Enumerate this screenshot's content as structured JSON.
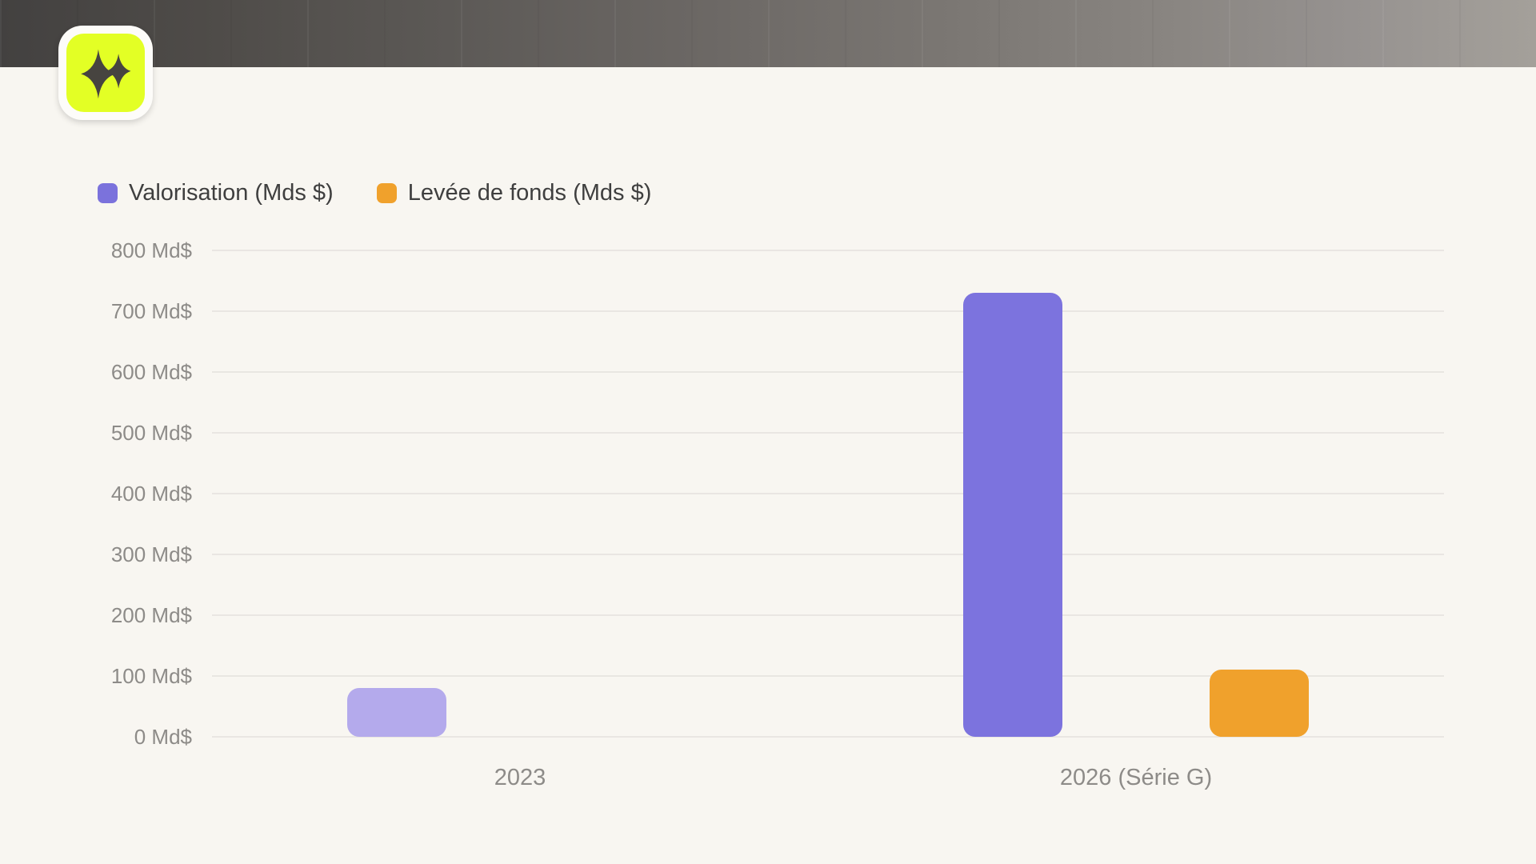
{
  "page": {
    "background_color": "#F8F6F1"
  },
  "header": {
    "kind": "gradient-photo-banner",
    "gradient_left_color": "#434140",
    "gradient_right_color": "#A4A09A"
  },
  "logo": {
    "outer_bg_color": "#FDFCF9",
    "tile_bg_color": "#E3FF25",
    "icon": "double-sparkle-icon",
    "icon_color": "#474440"
  },
  "chart_data": {
    "type": "bar",
    "title": "",
    "xlabel": "",
    "ylabel": "",
    "categories": [
      "2023",
      "2026 (Série G)"
    ],
    "series": [
      {
        "name": "Valorisation (Mds $)",
        "legend_color": "#7B72DC",
        "values": [
          80,
          730
        ],
        "bar_colors": [
          "#B4AAEC",
          "#7C73DE"
        ]
      },
      {
        "name": "Levée de fonds (Mds $)",
        "legend_color": "#F0A12C",
        "values": [
          null,
          110
        ],
        "bar_colors": [
          "#F0A12C",
          "#F0A12C"
        ]
      }
    ],
    "ylim": [
      0,
      800
    ],
    "yticks": [
      0,
      100,
      200,
      300,
      400,
      500,
      600,
      700,
      800
    ],
    "ytick_suffix": " Md$",
    "grid": true,
    "gridline_color": "#E9E6E2",
    "axis_text_color": "#8D8B88",
    "legend_text_color": "#3F3F3F",
    "legend_position": "top-left"
  }
}
